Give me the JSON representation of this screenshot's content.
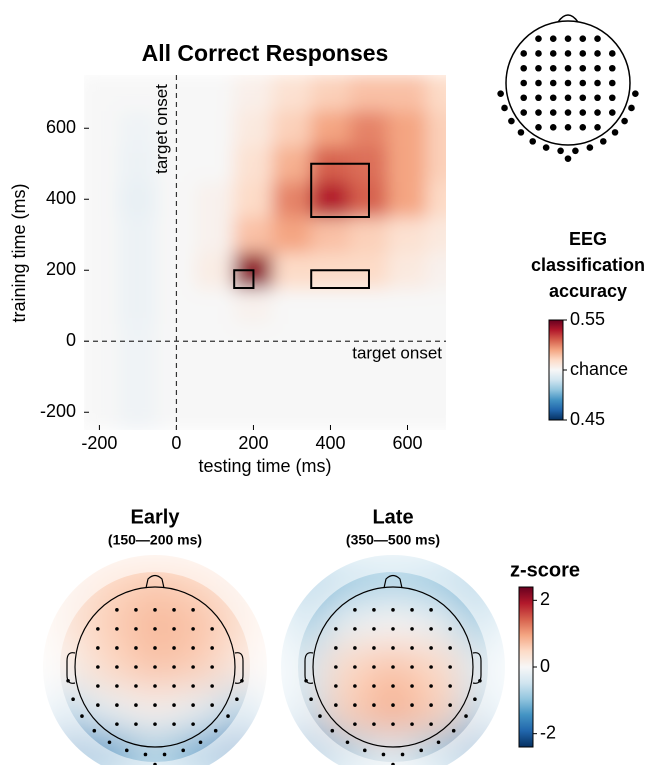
{
  "chart_data": [
    {
      "type": "heatmap",
      "title": "All Correct Responses",
      "xlabel": "testing time (ms)",
      "ylabel": "training time (ms)",
      "xlim": [
        -240,
        700
      ],
      "ylim": [
        -250,
        750
      ],
      "xticks": [
        -200,
        0,
        200,
        400,
        600
      ],
      "yticks": [
        -200,
        0,
        200,
        400,
        600
      ],
      "x": [
        -200,
        -100,
        0,
        100,
        200,
        300,
        400,
        500,
        600,
        700
      ],
      "y": [
        -200,
        -100,
        0,
        100,
        200,
        300,
        400,
        500,
        600,
        700
      ],
      "z": [
        [
          0.5,
          0.498,
          0.5,
          0.5,
          0.5,
          0.5,
          0.5,
          0.5,
          0.5,
          0.5
        ],
        [
          0.5,
          0.498,
          0.5,
          0.5,
          0.5,
          0.5,
          0.5,
          0.5,
          0.5,
          0.5
        ],
        [
          0.5,
          0.498,
          0.5,
          0.5,
          0.5,
          0.5,
          0.5,
          0.5,
          0.5,
          0.5
        ],
        [
          0.5,
          0.497,
          0.5,
          0.5,
          0.502,
          0.5,
          0.5,
          0.5,
          0.5,
          0.5
        ],
        [
          0.5,
          0.497,
          0.5,
          0.504,
          0.545,
          0.51,
          0.51,
          0.51,
          0.505,
          0.502
        ],
        [
          0.5,
          0.497,
          0.5,
          0.502,
          0.515,
          0.52,
          0.515,
          0.512,
          0.508,
          0.505
        ],
        [
          0.5,
          0.496,
          0.5,
          0.502,
          0.51,
          0.525,
          0.54,
          0.53,
          0.52,
          0.51
        ],
        [
          0.5,
          0.497,
          0.5,
          0.5,
          0.508,
          0.518,
          0.53,
          0.528,
          0.52,
          0.512
        ],
        [
          0.5,
          0.498,
          0.5,
          0.5,
          0.505,
          0.512,
          0.52,
          0.525,
          0.52,
          0.512
        ],
        [
          0.5,
          0.5,
          0.5,
          0.5,
          0.503,
          0.508,
          0.512,
          0.515,
          0.515,
          0.51
        ]
      ],
      "annotations": [
        {
          "text": "target onset",
          "axis": "x",
          "value": 0
        },
        {
          "text": "target onset",
          "axis": "y",
          "value": 0
        }
      ],
      "windows": [
        {
          "x": [
            150,
            200
          ],
          "y": [
            150,
            200
          ]
        },
        {
          "x": [
            350,
            500
          ],
          "y": [
            350,
            500
          ]
        },
        {
          "x": [
            350,
            500
          ],
          "y": [
            150,
            200
          ]
        }
      ],
      "colorbar": {
        "title": "EEG classification accuracy",
        "clim": [
          0.45,
          0.55
        ],
        "ticks": [
          0.45,
          {
            "value": 0.5,
            "label": "chance"
          },
          0.55
        ]
      },
      "colormap": [
        "#053061",
        "#2166ac",
        "#4393c3",
        "#92c5de",
        "#d1e5f0",
        "#f7f7f7",
        "#fddbc7",
        "#f4a582",
        "#d6604d",
        "#b2182b",
        "#67001f"
      ]
    },
    {
      "type": "topomap",
      "maps": [
        {
          "title": "Early",
          "subtitle": "(150—200 ms)",
          "z": [
            [
              0.2,
              0.5,
              0.6,
              0.5,
              0.2
            ],
            [
              0.3,
              0.6,
              0.8,
              0.7,
              0.4
            ],
            [
              0.1,
              0.5,
              0.7,
              0.6,
              0.2
            ],
            [
              -0.6,
              -0.2,
              0.1,
              -0.2,
              -0.7
            ],
            [
              -1.6,
              -1.4,
              -0.8,
              -1.3,
              -1.8
            ]
          ]
        },
        {
          "title": "Late",
          "subtitle": "(350—500 ms)",
          "z": [
            [
              -1.2,
              -0.9,
              -0.8,
              -0.9,
              -1.2
            ],
            [
              -0.8,
              -0.2,
              0,
              -0.2,
              -0.8
            ],
            [
              -0.4,
              0.5,
              0.7,
              0.5,
              -0.3
            ],
            [
              -0.6,
              0.6,
              0.9,
              0.6,
              -0.6
            ],
            [
              -1.5,
              -0.8,
              -0.3,
              -0.9,
              -1.6
            ]
          ]
        }
      ],
      "colorbar": {
        "title": "z-score",
        "clim": [
          -2.4,
          2.4
        ],
        "ticks": [
          -2,
          0,
          2
        ]
      },
      "colormap": [
        "#053061",
        "#2166ac",
        "#4393c3",
        "#92c5de",
        "#d1e5f0",
        "#f7f7f7",
        "#fddbc7",
        "#f4a582",
        "#d6604d",
        "#b2182b",
        "#67001f"
      ]
    }
  ]
}
